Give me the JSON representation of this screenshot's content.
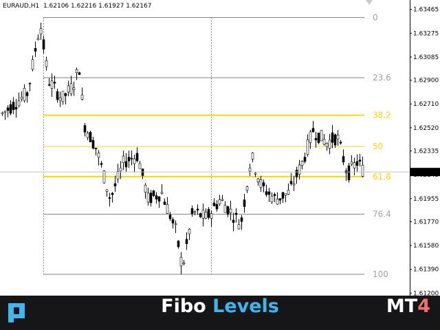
{
  "chart": {
    "symbol": "EURAUD,H1",
    "open": "1.62106",
    "high": "1.62216",
    "low": "1.61927",
    "close": "1.62167",
    "current_price": "1.62167",
    "price_min": 1.6118,
    "price_max": 1.6354,
    "price_ticks": [
      "1.63465",
      "1.63275",
      "1.63085",
      "1.62900",
      "1.62710",
      "1.62520",
      "1.62335",
      "1.62145",
      "1.61955",
      "1.61770",
      "1.61580",
      "1.61390",
      "1.61200"
    ],
    "colors": {
      "candles": "#000000",
      "fib_major": "#ffd700",
      "fib_minor": "#ffd700",
      "fib_neutral": "#808080",
      "current_line": "#c0c0c0",
      "price_tag_bg": "#000000"
    }
  },
  "fibo": {
    "levels": [
      {
        "label": "0",
        "price": 1.634,
        "color": "#808080",
        "label_color": "#a0a0a0",
        "width": 1
      },
      {
        "label": "23.6",
        "price": 1.6292,
        "color": "#808080",
        "label_color": "#a0a0a0",
        "width": 1
      },
      {
        "label": "38.2",
        "price": 1.6262,
        "color": "#ffd700",
        "label_color": "#ffd700",
        "width": 2
      },
      {
        "label": "50",
        "price": 1.6237,
        "color": "#ffd700",
        "label_color": "#ffd700",
        "width": 1
      },
      {
        "label": "61.8",
        "price": 1.6213,
        "color": "#ffd700",
        "label_color": "#ffd700",
        "width": 2
      },
      {
        "label": "76.4",
        "price": 1.6183,
        "color": "#808080",
        "label_color": "#a0a0a0",
        "width": 1
      },
      {
        "label": "100",
        "price": 1.6135,
        "color": "#808080",
        "label_color": "#a0a0a0",
        "width": 1
      }
    ]
  },
  "footer": {
    "title_part1": "Fibo",
    "title_part2": "Levels",
    "platform_prefix": "MT",
    "platform_version": "4",
    "logo_icon": "brand-logo-icon"
  }
}
